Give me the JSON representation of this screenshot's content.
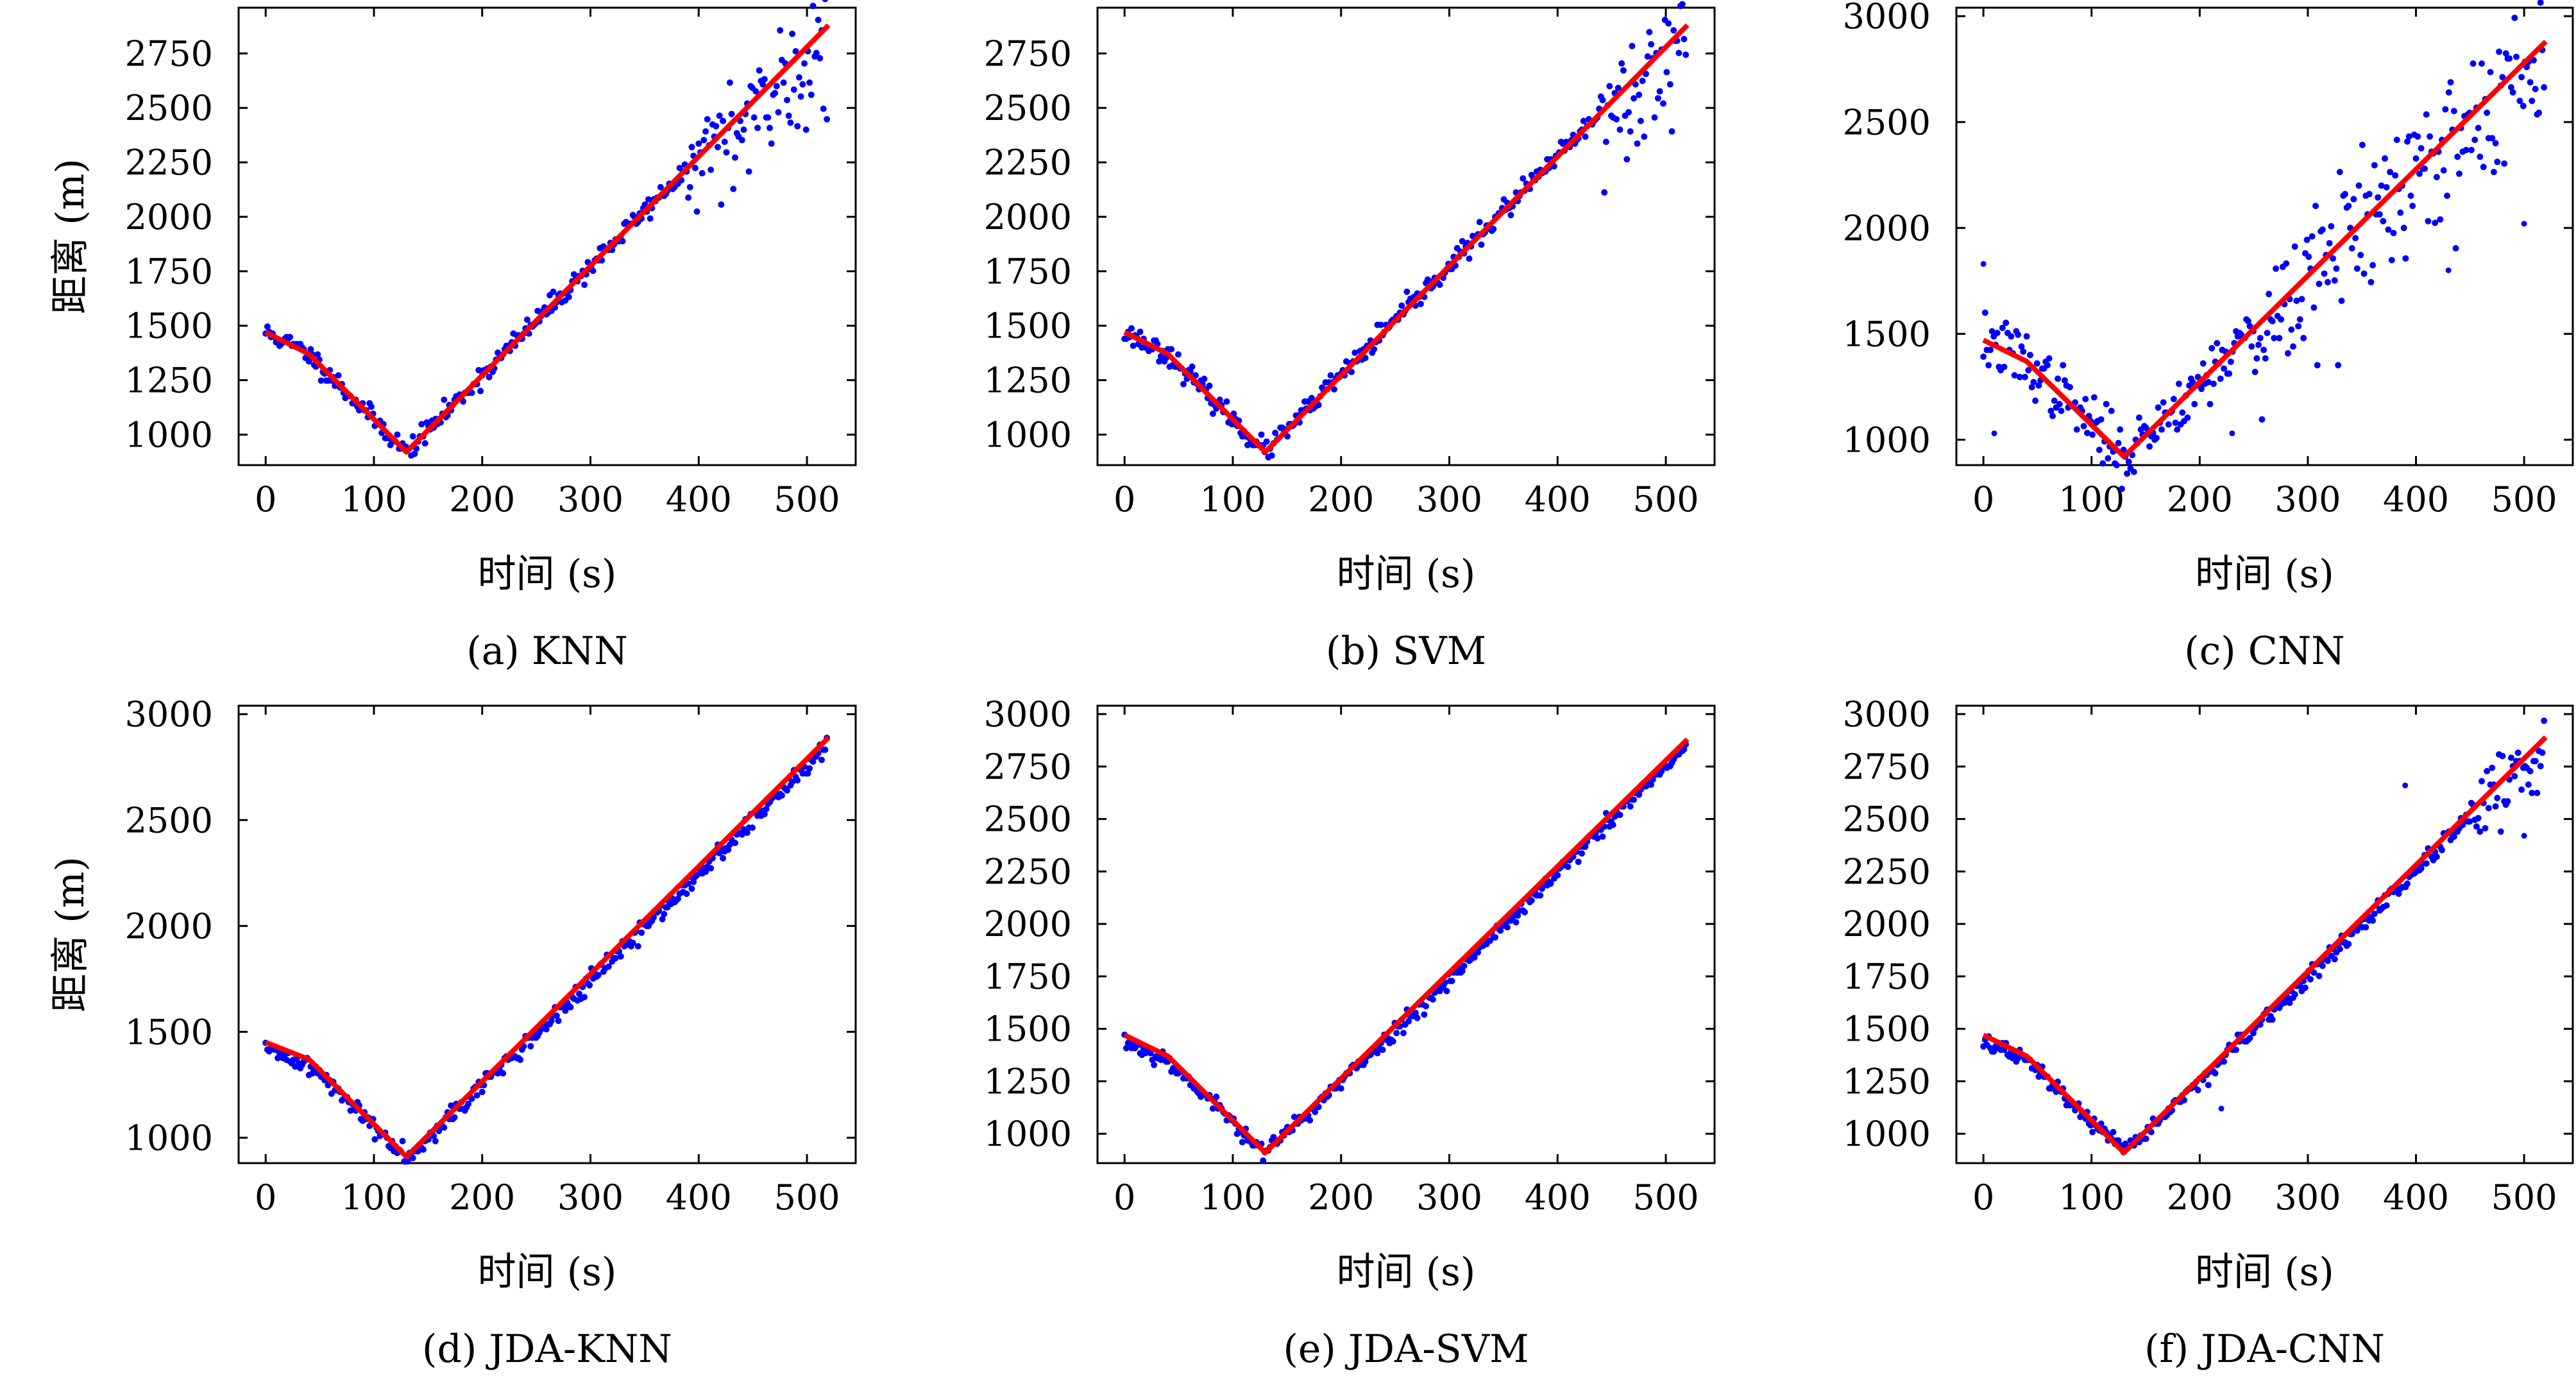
{
  "figure": {
    "panels": [
      {
        "caption": "(a) KNN",
        "method": "KNN"
      },
      {
        "caption": "(b) SVM",
        "method": "SVM"
      },
      {
        "caption": "(c) CNN",
        "method": "CNN"
      },
      {
        "caption": "(d) JDA-KNN",
        "method": "JDA-KNN"
      },
      {
        "caption": "(e) JDA-SVM",
        "method": "JDA-SVM"
      },
      {
        "caption": "(f) JDA-CNN",
        "method": "JDA-CNN"
      }
    ]
  },
  "colors": {
    "points": "#0000ff",
    "fit_line": "#ff0000",
    "axes": "#000000",
    "background": "#ffffff"
  },
  "chart_data": [
    {
      "type": "scatter",
      "title": "(a) KNN",
      "xlabel": "时间 (s)",
      "ylabel": "距离 (m)",
      "xlim": [
        -25,
        545
      ],
      "ylim": [
        860,
        2960
      ],
      "xticks": [
        0,
        100,
        200,
        300,
        400,
        500
      ],
      "yticks": [
        1000,
        1250,
        1500,
        1750,
        2000,
        2250,
        2500,
        2750
      ],
      "reference_line": {
        "x": [
          0,
          40,
          130,
          520
        ],
        "y": [
          1470,
          1370,
          920,
          2880
        ]
      },
      "points": {
        "noise": 25,
        "scatter_start": 390,
        "late_scatter": 140,
        "outliers": [],
        "seed": 11
      },
      "series": [
        {
          "name": "",
          "marker": "dot"
        }
      ],
      "grid": false
    },
    {
      "type": "scatter",
      "title": "(b) SVM",
      "xlabel": "时间 (s)",
      "ylabel": "",
      "xlim": [
        -25,
        545
      ],
      "ylim": [
        860,
        2960
      ],
      "xticks": [
        0,
        100,
        200,
        300,
        400,
        500
      ],
      "yticks": [
        1000,
        1250,
        1500,
        1750,
        2000,
        2250,
        2500,
        2750
      ],
      "reference_line": {
        "x": [
          0,
          40,
          130,
          520
        ],
        "y": [
          1470,
          1370,
          920,
          2880
        ]
      },
      "points": {
        "noise": 25,
        "scatter_start": 440,
        "late_scatter": 150,
        "outliers": [],
        "seed": 23
      },
      "series": [
        {
          "name": "",
          "marker": "dot"
        }
      ],
      "grid": false
    },
    {
      "type": "scatter",
      "title": "(c) CNN",
      "xlabel": "时间 (s)",
      "ylabel": "",
      "xlim": [
        -25,
        545
      ],
      "ylim": [
        880,
        3040
      ],
      "xticks": [
        0,
        100,
        200,
        300,
        400,
        500
      ],
      "yticks": [
        1000,
        1500,
        2000,
        2500,
        3000
      ],
      "reference_line": {
        "x": [
          0,
          40,
          130,
          520
        ],
        "y": [
          1470,
          1370,
          920,
          2880
        ]
      },
      "points": {
        "noise": 70,
        "scatter_start": 250,
        "late_scatter": 160,
        "outliers": [
          [
            0,
            1830
          ],
          [
            10,
            1030
          ],
          [
            230,
            1030
          ],
          [
            430,
            1800
          ],
          [
            500,
            2020
          ]
        ],
        "seed": 37
      },
      "series": [
        {
          "name": "",
          "marker": "dot"
        }
      ],
      "grid": false
    },
    {
      "type": "scatter",
      "title": "(d) JDA-KNN",
      "xlabel": "时间 (s)",
      "ylabel": "距离 (m)",
      "xlim": [
        -25,
        545
      ],
      "ylim": [
        880,
        3040
      ],
      "xticks": [
        0,
        100,
        200,
        300,
        400,
        500
      ],
      "yticks": [
        1000,
        1500,
        2000,
        2500,
        3000
      ],
      "reference_line": {
        "x": [
          0,
          40,
          130,
          520
        ],
        "y": [
          1450,
          1370,
          910,
          2890
        ]
      },
      "points": {
        "noise": 22,
        "scatter_start": 1000,
        "late_scatter": 0,
        "bias": -35,
        "outliers": [],
        "seed": 41
      },
      "series": [
        {
          "name": "",
          "marker": "dot"
        }
      ],
      "grid": false
    },
    {
      "type": "scatter",
      "title": "(e) JDA-SVM",
      "xlabel": "时间 (s)",
      "ylabel": "",
      "xlim": [
        -25,
        545
      ],
      "ylim": [
        860,
        3040
      ],
      "xticks": [
        0,
        100,
        200,
        300,
        400,
        500
      ],
      "yticks": [
        1000,
        1250,
        1500,
        1750,
        2000,
        2250,
        2500,
        2750,
        3000
      ],
      "reference_line": {
        "x": [
          0,
          40,
          130,
          520
        ],
        "y": [
          1470,
          1370,
          910,
          2880
        ]
      },
      "points": {
        "noise": 20,
        "scatter_start": 1000,
        "late_scatter": 0,
        "bias": -30,
        "outliers": [],
        "seed": 53
      },
      "series": [
        {
          "name": "",
          "marker": "dot"
        }
      ],
      "grid": false
    },
    {
      "type": "scatter",
      "title": "(f) JDA-CNN",
      "xlabel": "时间 (s)",
      "ylabel": "",
      "xlim": [
        -25,
        545
      ],
      "ylim": [
        860,
        3040
      ],
      "xticks": [
        0,
        100,
        200,
        300,
        400,
        500
      ],
      "yticks": [
        1000,
        1250,
        1500,
        1750,
        2000,
        2250,
        2500,
        2750,
        3000
      ],
      "reference_line": {
        "x": [
          0,
          40,
          130,
          520
        ],
        "y": [
          1470,
          1370,
          910,
          2890
        ]
      },
      "points": {
        "noise": 20,
        "scatter_start": 450,
        "late_scatter": 90,
        "bias": -30,
        "outliers": [
          [
            220,
            1120
          ],
          [
            390,
            2660
          ],
          [
            500,
            2420
          ]
        ],
        "seed": 67
      },
      "series": [
        {
          "name": "",
          "marker": "dot"
        }
      ],
      "grid": false
    }
  ]
}
